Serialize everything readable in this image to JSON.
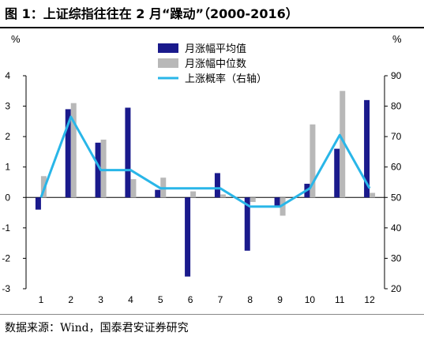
{
  "title": "图 1：上证综指往往在 2 月“躁动”（2000-2016）",
  "source": "数据来源：Wind，国泰君安证券研究",
  "chart_data": {
    "type": "bar",
    "categories": [
      "1",
      "2",
      "3",
      "4",
      "5",
      "6",
      "7",
      "8",
      "9",
      "10",
      "11",
      "12"
    ],
    "series": [
      {
        "name": "月涨幅平均值",
        "axis": "left",
        "type": "bar",
        "color": "#1a1a8c",
        "values": [
          -0.4,
          2.9,
          1.8,
          2.95,
          0.25,
          -2.6,
          0.8,
          -1.75,
          -0.3,
          0.45,
          1.6,
          3.2
        ]
      },
      {
        "name": "月涨幅中位数",
        "axis": "left",
        "type": "bar",
        "color": "#b8b8b8",
        "values": [
          0.7,
          3.1,
          1.9,
          0.6,
          0.65,
          0.2,
          0.1,
          -0.15,
          -0.6,
          2.4,
          3.5,
          0.15
        ]
      },
      {
        "name": "上涨概率（右轴）",
        "axis": "right",
        "type": "line",
        "color": "#29b6e8",
        "values": [
          50,
          76.5,
          59,
          59,
          53,
          53,
          53,
          47,
          47,
          53,
          70.5,
          53
        ]
      }
    ],
    "left_axis": {
      "unit": "%",
      "ylim": [
        -3,
        4
      ],
      "ticks": [
        -3,
        -2,
        -1,
        0,
        1,
        2,
        3,
        4
      ]
    },
    "right_axis": {
      "unit": "%",
      "ylim": [
        20,
        90
      ],
      "ticks": [
        20,
        30,
        40,
        50,
        60,
        70,
        80,
        90
      ]
    },
    "legend_placement": "top-center",
    "grid": false
  }
}
